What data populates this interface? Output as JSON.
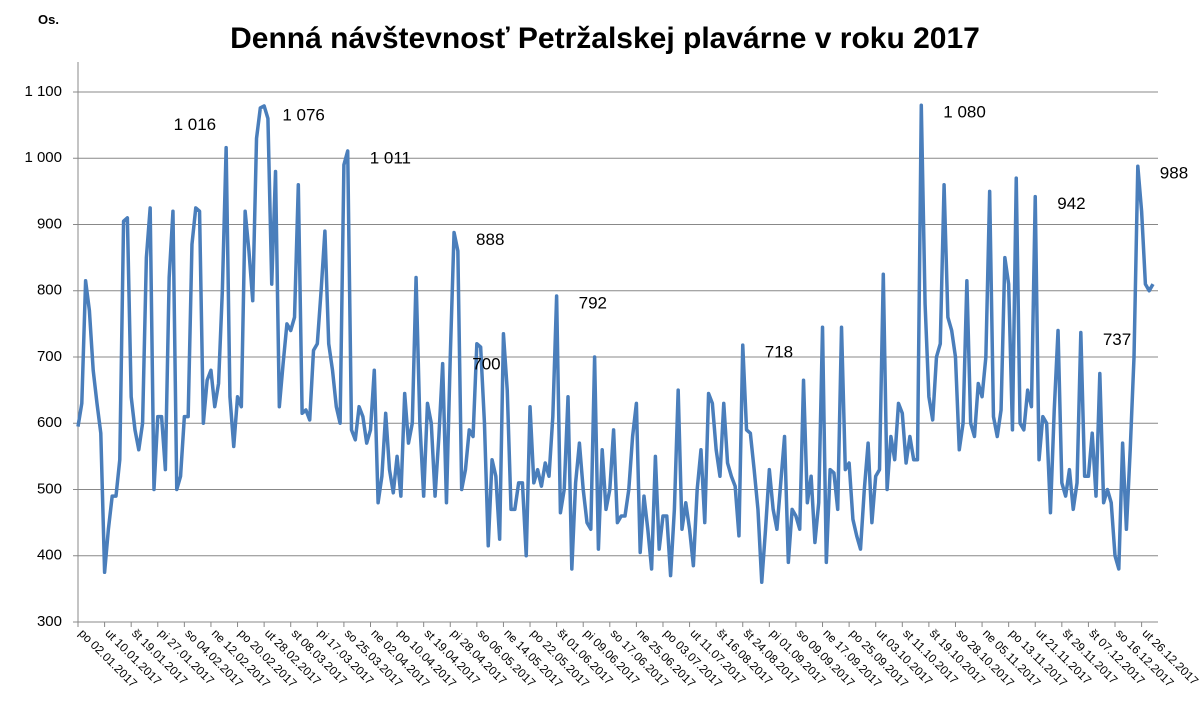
{
  "chart_data": {
    "type": "line",
    "title": "Denná návštevnosť Petržalskej plavárne v roku 2017",
    "y_label": "Os.",
    "color": "#4a7ebb",
    "grid": true,
    "ylim": [
      300,
      1100
    ],
    "yticks": [
      300,
      400,
      500,
      600,
      700,
      800,
      900,
      {
        "value": 1000,
        "label": "1 000"
      },
      {
        "value": 1100,
        "label": "1 100"
      }
    ],
    "annotations": [
      {
        "value": 1016,
        "label": "1 016"
      },
      {
        "value": 1076,
        "label": "1 076"
      },
      {
        "value": 1011,
        "label": "1 011"
      },
      {
        "value": 888,
        "label": "888"
      },
      {
        "value": 792,
        "label": "792"
      },
      {
        "value": 700,
        "label": "700"
      },
      {
        "value": 718,
        "label": "718"
      },
      {
        "value": 1080,
        "label": "1 080"
      },
      {
        "value": 942,
        "label": "942"
      },
      {
        "value": 737,
        "label": "737"
      },
      {
        "value": 988,
        "label": "988"
      }
    ],
    "categories": [
      "po 02.01.2017",
      null,
      null,
      null,
      null,
      null,
      null,
      "ut 10.01.2017",
      null,
      null,
      null,
      null,
      null,
      null,
      "št 19.01.2017",
      null,
      null,
      null,
      null,
      null,
      null,
      "pi 27.01.2017",
      null,
      null,
      null,
      null,
      null,
      null,
      "so 04.02.2017",
      null,
      null,
      null,
      null,
      null,
      null,
      "ne 12.02.2017",
      null,
      null,
      null,
      null,
      null,
      null,
      "po 20.02.2017",
      null,
      null,
      null,
      null,
      null,
      null,
      "ut 28.02.2017",
      null,
      null,
      null,
      null,
      null,
      null,
      "st 08.03.2017",
      null,
      null,
      null,
      null,
      null,
      null,
      "pi 17.03.2017",
      null,
      null,
      null,
      null,
      null,
      null,
      "so 25.03.2017",
      null,
      null,
      null,
      null,
      null,
      null,
      "ne 02.04.2017",
      null,
      null,
      null,
      null,
      null,
      null,
      "po 10.04.2017",
      null,
      null,
      null,
      null,
      null,
      null,
      "st 19.04.2017",
      null,
      null,
      null,
      null,
      null,
      null,
      "pi 28.04.2017",
      null,
      null,
      null,
      null,
      null,
      null,
      "so 06.05.2017",
      null,
      null,
      null,
      null,
      null,
      null,
      "ne 14.05.2017",
      null,
      null,
      null,
      null,
      null,
      null,
      "po 22.05.2017",
      null,
      null,
      null,
      null,
      null,
      null,
      "št 01.06.2017",
      null,
      null,
      null,
      null,
      null,
      null,
      "pi 09.06.2017",
      null,
      null,
      null,
      null,
      null,
      null,
      "so 17.06.2017",
      null,
      null,
      null,
      null,
      null,
      null,
      "ne 25.06.2017",
      null,
      null,
      null,
      null,
      null,
      null,
      "po 03.07.2017",
      null,
      null,
      null,
      null,
      null,
      null,
      "ut 11.07.2017",
      null,
      null,
      null,
      null,
      null,
      null,
      "št 16.08.2017",
      null,
      null,
      null,
      null,
      null,
      null,
      "št 24.08.2017",
      null,
      null,
      null,
      null,
      null,
      null,
      "pi 01.09.2017",
      null,
      null,
      null,
      null,
      null,
      null,
      "so 09.09.2017",
      null,
      null,
      null,
      null,
      null,
      null,
      "ne 17.09.2017",
      null,
      null,
      null,
      null,
      null,
      null,
      "po 25.09.2017",
      null,
      null,
      null,
      null,
      null,
      null,
      "ut 03.10.2017",
      null,
      null,
      null,
      null,
      null,
      null,
      "st 11.10.2017",
      null,
      null,
      null,
      null,
      null,
      null,
      "št 19.10.2017",
      null,
      null,
      null,
      null,
      null,
      null,
      "so 28.10.2017",
      null,
      null,
      null,
      null,
      null,
      null,
      "ne 05.11.2017",
      null,
      null,
      null,
      null,
      null,
      null,
      "po 13.11.2017",
      null,
      null,
      null,
      null,
      null,
      null,
      "ut 21.11.2017",
      null,
      null,
      null,
      null,
      null,
      null,
      "št 29.11.2017",
      null,
      null,
      null,
      null,
      null,
      null,
      "št 07.12.2017",
      null,
      null,
      null,
      null,
      null,
      null,
      "so 16.12.2017",
      null,
      null,
      null,
      null,
      null,
      null,
      "ut 26.12.2017",
      null,
      null,
      null
    ],
    "values": [
      595,
      630,
      815,
      770,
      680,
      630,
      585,
      375,
      440,
      490,
      490,
      545,
      905,
      910,
      640,
      590,
      560,
      600,
      850,
      925,
      500,
      610,
      610,
      530,
      820,
      920,
      500,
      520,
      610,
      610,
      870,
      925,
      920,
      600,
      665,
      680,
      625,
      660,
      800,
      1016,
      640,
      565,
      640,
      625,
      920,
      860,
      785,
      1030,
      1076,
      1079,
      1060,
      810,
      980,
      625,
      690,
      750,
      740,
      760,
      960,
      615,
      620,
      605,
      710,
      720,
      800,
      890,
      720,
      680,
      625,
      600,
      990,
      1011,
      590,
      575,
      625,
      610,
      570,
      590,
      680,
      480,
      520,
      615,
      530,
      495,
      550,
      490,
      645,
      570,
      600,
      820,
      600,
      490,
      630,
      600,
      490,
      580,
      690,
      480,
      700,
      888,
      860,
      500,
      530,
      590,
      580,
      720,
      715,
      600,
      415,
      545,
      520,
      425,
      735,
      650,
      470,
      470,
      510,
      510,
      400,
      625,
      510,
      530,
      505,
      540,
      520,
      610,
      792,
      465,
      500,
      640,
      380,
      510,
      570,
      500,
      450,
      440,
      700,
      410,
      560,
      470,
      500,
      590,
      450,
      460,
      460,
      500,
      580,
      630,
      405,
      490,
      440,
      380,
      550,
      410,
      460,
      460,
      370,
      470,
      650,
      440,
      480,
      440,
      385,
      500,
      560,
      450,
      645,
      630,
      560,
      520,
      630,
      540,
      520,
      505,
      430,
      718,
      590,
      585,
      530,
      470,
      360,
      440,
      530,
      470,
      440,
      510,
      580,
      390,
      470,
      460,
      440,
      665,
      480,
      520,
      420,
      480,
      745,
      390,
      530,
      525,
      470,
      745,
      530,
      540,
      455,
      430,
      410,
      500,
      570,
      450,
      520,
      530,
      825,
      500,
      580,
      545,
      630,
      615,
      540,
      580,
      545,
      545,
      1080,
      780,
      640,
      605,
      700,
      720,
      960,
      760,
      740,
      700,
      560,
      600,
      815,
      600,
      580,
      660,
      640,
      700,
      950,
      610,
      580,
      620,
      850,
      810,
      590,
      970,
      600,
      590,
      650,
      625,
      942,
      545,
      610,
      600,
      465,
      620,
      740,
      510,
      490,
      530,
      470,
      510,
      737,
      520,
      520,
      585,
      490,
      675,
      480,
      500,
      480,
      400,
      380,
      570,
      440,
      560,
      700,
      988,
      920,
      810,
      800,
      810
    ]
  }
}
